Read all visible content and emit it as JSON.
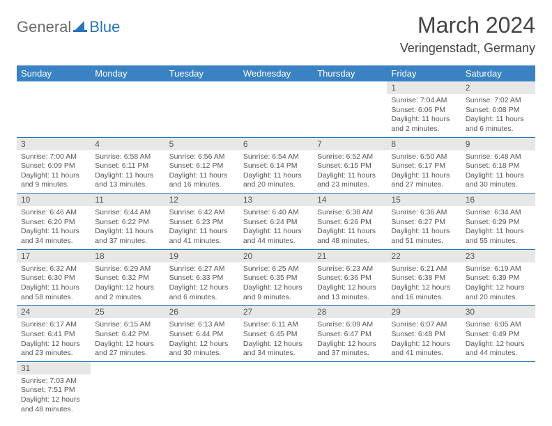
{
  "logo": {
    "general": "General",
    "blue": "Blue"
  },
  "title": {
    "month": "March 2024",
    "location": "Veringenstadt, Germany"
  },
  "colors": {
    "header_bg": "#3a82c4",
    "header_fg": "#ffffff",
    "daynum_bg": "#e7e7e7",
    "rule": "#2a74b8",
    "logo_blue": "#2a74b8",
    "logo_gray": "#6b6b6b"
  },
  "weekdays": [
    "Sunday",
    "Monday",
    "Tuesday",
    "Wednesday",
    "Thursday",
    "Friday",
    "Saturday"
  ],
  "weeks": [
    [
      null,
      null,
      null,
      null,
      null,
      {
        "n": "1",
        "sunrise": "Sunrise: 7:04 AM",
        "sunset": "Sunset: 6:06 PM",
        "day": "Daylight: 11 hours and 2 minutes."
      },
      {
        "n": "2",
        "sunrise": "Sunrise: 7:02 AM",
        "sunset": "Sunset: 6:08 PM",
        "day": "Daylight: 11 hours and 6 minutes."
      }
    ],
    [
      {
        "n": "3",
        "sunrise": "Sunrise: 7:00 AM",
        "sunset": "Sunset: 6:09 PM",
        "day": "Daylight: 11 hours and 9 minutes."
      },
      {
        "n": "4",
        "sunrise": "Sunrise: 6:58 AM",
        "sunset": "Sunset: 6:11 PM",
        "day": "Daylight: 11 hours and 13 minutes."
      },
      {
        "n": "5",
        "sunrise": "Sunrise: 6:56 AM",
        "sunset": "Sunset: 6:12 PM",
        "day": "Daylight: 11 hours and 16 minutes."
      },
      {
        "n": "6",
        "sunrise": "Sunrise: 6:54 AM",
        "sunset": "Sunset: 6:14 PM",
        "day": "Daylight: 11 hours and 20 minutes."
      },
      {
        "n": "7",
        "sunrise": "Sunrise: 6:52 AM",
        "sunset": "Sunset: 6:15 PM",
        "day": "Daylight: 11 hours and 23 minutes."
      },
      {
        "n": "8",
        "sunrise": "Sunrise: 6:50 AM",
        "sunset": "Sunset: 6:17 PM",
        "day": "Daylight: 11 hours and 27 minutes."
      },
      {
        "n": "9",
        "sunrise": "Sunrise: 6:48 AM",
        "sunset": "Sunset: 6:18 PM",
        "day": "Daylight: 11 hours and 30 minutes."
      }
    ],
    [
      {
        "n": "10",
        "sunrise": "Sunrise: 6:46 AM",
        "sunset": "Sunset: 6:20 PM",
        "day": "Daylight: 11 hours and 34 minutes."
      },
      {
        "n": "11",
        "sunrise": "Sunrise: 6:44 AM",
        "sunset": "Sunset: 6:22 PM",
        "day": "Daylight: 11 hours and 37 minutes."
      },
      {
        "n": "12",
        "sunrise": "Sunrise: 6:42 AM",
        "sunset": "Sunset: 6:23 PM",
        "day": "Daylight: 11 hours and 41 minutes."
      },
      {
        "n": "13",
        "sunrise": "Sunrise: 6:40 AM",
        "sunset": "Sunset: 6:24 PM",
        "day": "Daylight: 11 hours and 44 minutes."
      },
      {
        "n": "14",
        "sunrise": "Sunrise: 6:38 AM",
        "sunset": "Sunset: 6:26 PM",
        "day": "Daylight: 11 hours and 48 minutes."
      },
      {
        "n": "15",
        "sunrise": "Sunrise: 6:36 AM",
        "sunset": "Sunset: 6:27 PM",
        "day": "Daylight: 11 hours and 51 minutes."
      },
      {
        "n": "16",
        "sunrise": "Sunrise: 6:34 AM",
        "sunset": "Sunset: 6:29 PM",
        "day": "Daylight: 11 hours and 55 minutes."
      }
    ],
    [
      {
        "n": "17",
        "sunrise": "Sunrise: 6:32 AM",
        "sunset": "Sunset: 6:30 PM",
        "day": "Daylight: 11 hours and 58 minutes."
      },
      {
        "n": "18",
        "sunrise": "Sunrise: 6:29 AM",
        "sunset": "Sunset: 6:32 PM",
        "day": "Daylight: 12 hours and 2 minutes."
      },
      {
        "n": "19",
        "sunrise": "Sunrise: 6:27 AM",
        "sunset": "Sunset: 6:33 PM",
        "day": "Daylight: 12 hours and 6 minutes."
      },
      {
        "n": "20",
        "sunrise": "Sunrise: 6:25 AM",
        "sunset": "Sunset: 6:35 PM",
        "day": "Daylight: 12 hours and 9 minutes."
      },
      {
        "n": "21",
        "sunrise": "Sunrise: 6:23 AM",
        "sunset": "Sunset: 6:36 PM",
        "day": "Daylight: 12 hours and 13 minutes."
      },
      {
        "n": "22",
        "sunrise": "Sunrise: 6:21 AM",
        "sunset": "Sunset: 6:38 PM",
        "day": "Daylight: 12 hours and 16 minutes."
      },
      {
        "n": "23",
        "sunrise": "Sunrise: 6:19 AM",
        "sunset": "Sunset: 6:39 PM",
        "day": "Daylight: 12 hours and 20 minutes."
      }
    ],
    [
      {
        "n": "24",
        "sunrise": "Sunrise: 6:17 AM",
        "sunset": "Sunset: 6:41 PM",
        "day": "Daylight: 12 hours and 23 minutes."
      },
      {
        "n": "25",
        "sunrise": "Sunrise: 6:15 AM",
        "sunset": "Sunset: 6:42 PM",
        "day": "Daylight: 12 hours and 27 minutes."
      },
      {
        "n": "26",
        "sunrise": "Sunrise: 6:13 AM",
        "sunset": "Sunset: 6:44 PM",
        "day": "Daylight: 12 hours and 30 minutes."
      },
      {
        "n": "27",
        "sunrise": "Sunrise: 6:11 AM",
        "sunset": "Sunset: 6:45 PM",
        "day": "Daylight: 12 hours and 34 minutes."
      },
      {
        "n": "28",
        "sunrise": "Sunrise: 6:09 AM",
        "sunset": "Sunset: 6:47 PM",
        "day": "Daylight: 12 hours and 37 minutes."
      },
      {
        "n": "29",
        "sunrise": "Sunrise: 6:07 AM",
        "sunset": "Sunset: 6:48 PM",
        "day": "Daylight: 12 hours and 41 minutes."
      },
      {
        "n": "30",
        "sunrise": "Sunrise: 6:05 AM",
        "sunset": "Sunset: 6:49 PM",
        "day": "Daylight: 12 hours and 44 minutes."
      }
    ],
    [
      {
        "n": "31",
        "sunrise": "Sunrise: 7:03 AM",
        "sunset": "Sunset: 7:51 PM",
        "day": "Daylight: 12 hours and 48 minutes."
      },
      null,
      null,
      null,
      null,
      null,
      null
    ]
  ]
}
